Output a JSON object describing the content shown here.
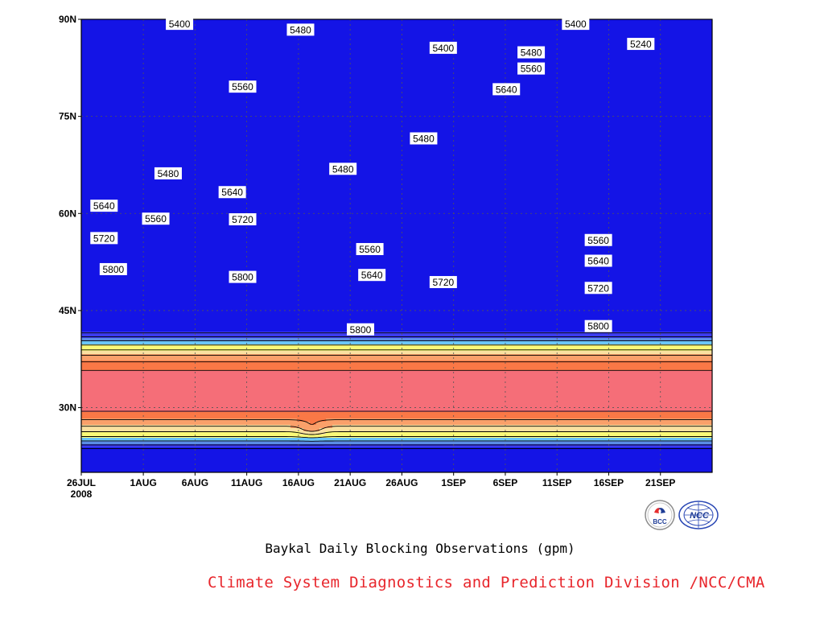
{
  "chart_data": {
    "type": "contour-filled",
    "title": "Baykal Daily Blocking Observations (gpm)",
    "x_ticks": [
      "26JUL",
      "1AUG",
      "6AUG",
      "11AUG",
      "16AUG",
      "21AUG",
      "26AUG",
      "1SEP",
      "6SEP",
      "11SEP",
      "16SEP",
      "21SEP"
    ],
    "x_tick_year": "2008",
    "y_ticks": [
      "90N",
      "75N",
      "60N",
      "45N",
      "30N"
    ],
    "y_tick_values": [
      90,
      75,
      60,
      45,
      30
    ],
    "ylim": [
      20,
      90
    ],
    "xlim_days": [
      0,
      61
    ],
    "levels": [
      5240,
      5320,
      5400,
      5480,
      5560,
      5640,
      5720,
      5800,
      5880
    ],
    "fill_colors": [
      "#1414e6",
      "#3c3cf0",
      "#5a8ce6",
      "#6ac6fa",
      "#fafa78",
      "#fae1a0",
      "#faa06a",
      "#fa7846",
      "#f56e78",
      "#e62d46"
    ],
    "contour_labels": [
      {
        "text": "5400",
        "x": 9.5,
        "y": 89.3
      },
      {
        "text": "5480",
        "x": 21.2,
        "y": 88.4
      },
      {
        "text": "5400",
        "x": 47.8,
        "y": 89.3
      },
      {
        "text": "5240",
        "x": 54.1,
        "y": 86.2
      },
      {
        "text": "5400",
        "x": 35,
        "y": 85.6
      },
      {
        "text": "5480",
        "x": 43.5,
        "y": 84.9
      },
      {
        "text": "5560",
        "x": 43.5,
        "y": 82.4
      },
      {
        "text": "5640",
        "x": 41.1,
        "y": 79.2
      },
      {
        "text": "5560",
        "x": 15.6,
        "y": 79.6
      },
      {
        "text": "5480",
        "x": 33.1,
        "y": 71.6
      },
      {
        "text": "5480",
        "x": 8.4,
        "y": 66.2
      },
      {
        "text": "5480",
        "x": 25.3,
        "y": 66.9
      },
      {
        "text": "5640",
        "x": 14.6,
        "y": 63.3
      },
      {
        "text": "5640",
        "x": 2.2,
        "y": 61.2
      },
      {
        "text": "5560",
        "x": 7.2,
        "y": 59.2
      },
      {
        "text": "5720",
        "x": 15.6,
        "y": 59.1
      },
      {
        "text": "5720",
        "x": 2.2,
        "y": 56.2
      },
      {
        "text": "5560",
        "x": 50,
        "y": 55.9
      },
      {
        "text": "5640",
        "x": 50,
        "y": 52.7
      },
      {
        "text": "5560",
        "x": 27.9,
        "y": 54.5
      },
      {
        "text": "5800",
        "x": 3.1,
        "y": 51.4
      },
      {
        "text": "5640",
        "x": 28.1,
        "y": 50.5
      },
      {
        "text": "5800",
        "x": 15.6,
        "y": 50.2
      },
      {
        "text": "5720",
        "x": 35,
        "y": 49.4
      },
      {
        "text": "5720",
        "x": 50,
        "y": 48.5
      },
      {
        "text": "5800",
        "x": 27,
        "y": 42.1
      },
      {
        "text": "5800",
        "x": 50,
        "y": 42.6
      }
    ]
  },
  "caption": {
    "subtitle": "Baykal Daily Blocking Observations (gpm)",
    "credit": "Climate System Diagnostics and Prediction Division /NCC/CMA"
  },
  "logos": {
    "bcc_text": "BCC",
    "ncc_text": "NCC"
  }
}
